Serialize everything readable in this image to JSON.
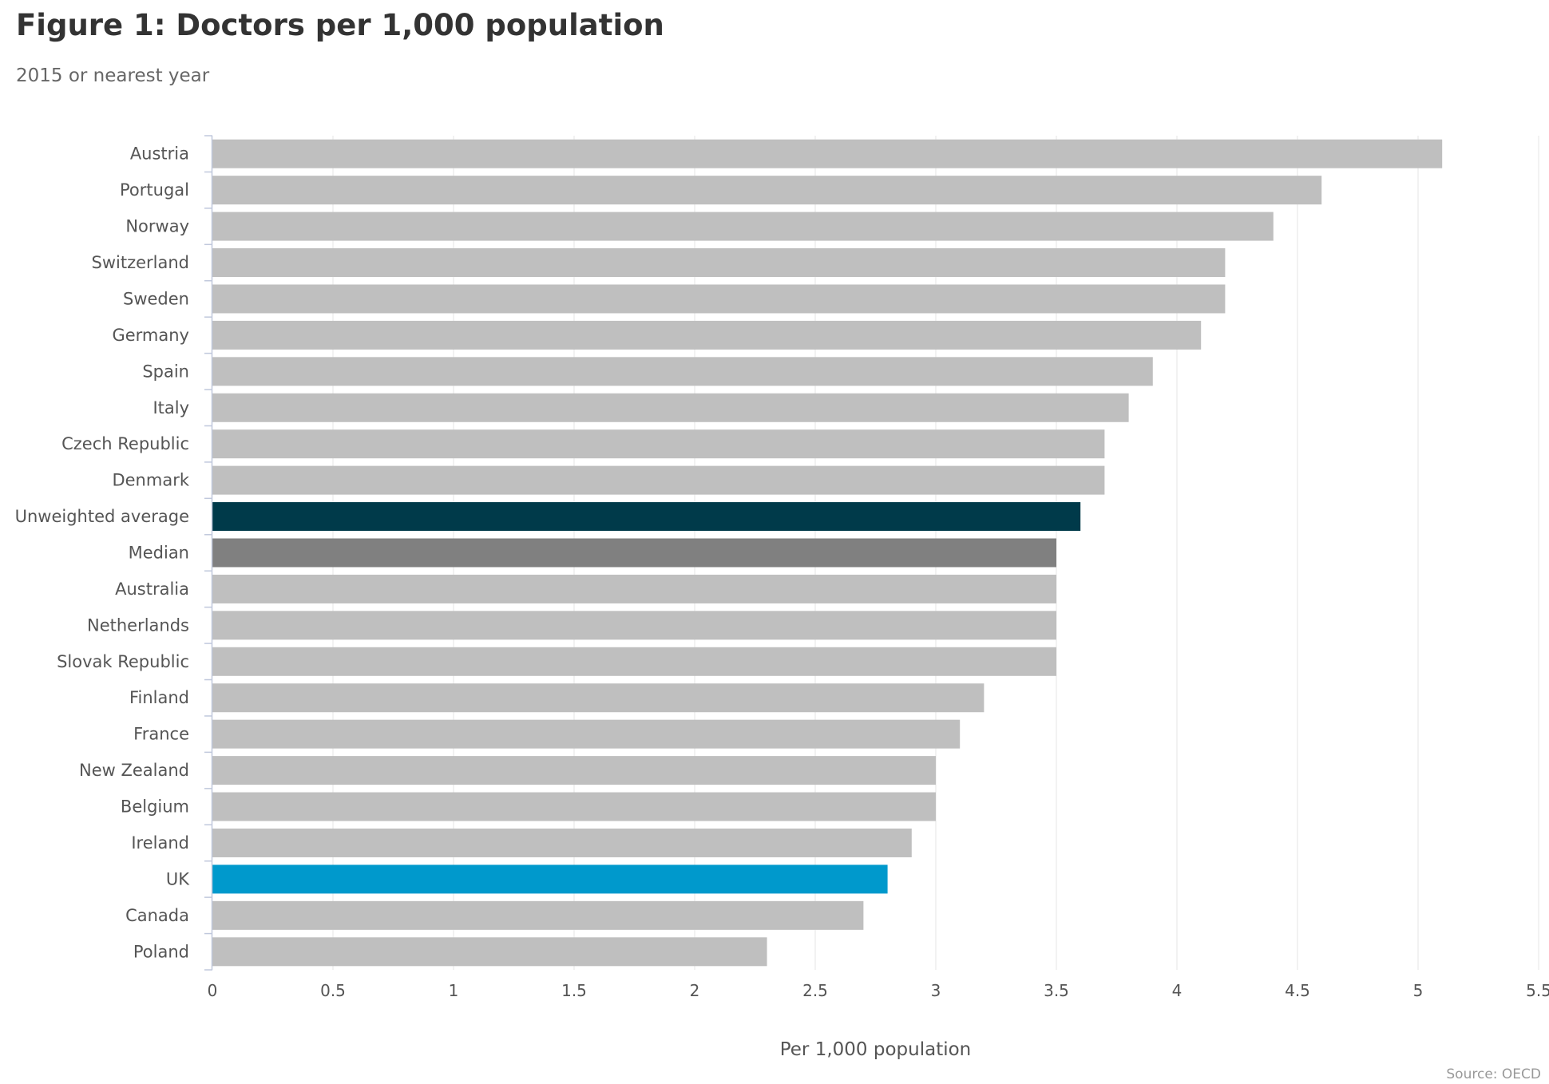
{
  "chart_data": {
    "type": "bar",
    "orientation": "horizontal",
    "title": "Figure 1: Doctors per 1,000 population",
    "subtitle": "2015 or nearest year",
    "xlabel": "Per 1,000 population",
    "ylabel": "",
    "xlim": [
      0,
      5.5
    ],
    "x_ticks": [
      "0",
      "0.5",
      "1",
      "1.5",
      "2",
      "2.5",
      "3",
      "3.5",
      "4",
      "4.5",
      "5",
      "5.5"
    ],
    "grid": "vertical",
    "legend": "none",
    "source": "Source: OECD",
    "categories": [
      "Austria",
      "Portugal",
      "Norway",
      "Switzerland",
      "Sweden",
      "Germany",
      "Spain",
      "Italy",
      "Czech Republic",
      "Denmark",
      "Unweighted average",
      "Median",
      "Australia",
      "Netherlands",
      "Slovak Republic",
      "Finland",
      "France",
      "New Zealand",
      "Belgium",
      "Ireland",
      "UK",
      "Canada",
      "Poland"
    ],
    "values": [
      5.1,
      4.6,
      4.4,
      4.2,
      4.2,
      4.1,
      3.9,
      3.8,
      3.7,
      3.7,
      3.6,
      3.5,
      3.5,
      3.5,
      3.5,
      3.2,
      3.1,
      3.0,
      3.0,
      2.9,
      2.8,
      2.7,
      2.3
    ],
    "colors": {
      "default": "#bfbfbf",
      "Unweighted average": "#003a4a",
      "Median": "#808080",
      "UK": "#0099cc"
    }
  }
}
